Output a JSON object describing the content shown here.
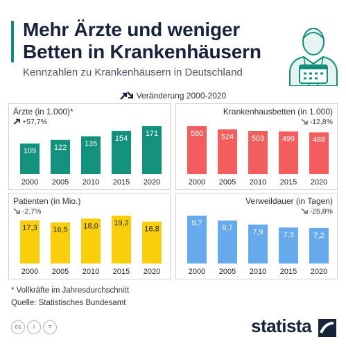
{
  "title": "Mehr Ärzte und weniger Betten in Krankenhäusern",
  "subtitle": "Kennzahlen zu Krankenhäusern in Deutschland",
  "legend_label": "Veränderung 2000-2020",
  "footnote": "* Vollkräfte im Jahresdurchschnitt",
  "source": "Quelle: Statistisches Bundesamt",
  "brand": "statista",
  "icons": {
    "doctor": "doctor-icon",
    "arrow": "trend-arrow-icon",
    "license": [
      "cc-icon",
      "by-icon",
      "nd-icon"
    ]
  },
  "chart_data": [
    {
      "type": "bar",
      "title": "Ärzte (in 1.000)*",
      "change": "+57,7%",
      "direction": "up",
      "categories": [
        "2000",
        "2005",
        "2010",
        "2015",
        "2020"
      ],
      "values": [
        109,
        122,
        135,
        154,
        171
      ],
      "labels": [
        "109",
        "122",
        "135",
        "154",
        "171"
      ],
      "color": "#12917c",
      "ylim": [
        0,
        171
      ]
    },
    {
      "type": "bar",
      "title": "Krankenhausbetten (in 1.000)",
      "change": "-12,8%",
      "direction": "down",
      "categories": [
        "2000",
        "2005",
        "2010",
        "2015",
        "2020"
      ],
      "values": [
        560,
        524,
        503,
        499,
        488
      ],
      "labels": [
        "560",
        "524",
        "503",
        "499",
        "488"
      ],
      "color": "#f35d5d",
      "ylim": [
        0,
        560
      ]
    },
    {
      "type": "bar",
      "title": "Patienten (in Mio.)",
      "change": "-2,7%",
      "direction": "down",
      "categories": [
        "2000",
        "2005",
        "2010",
        "2015",
        "2020"
      ],
      "values": [
        17.3,
        16.5,
        18.0,
        19.2,
        16.8
      ],
      "labels": [
        "17,3",
        "16,5",
        "18,0",
        "19,2",
        "16,8"
      ],
      "color": "#f9cf0b",
      "ylim": [
        0,
        19.2
      ]
    },
    {
      "type": "bar",
      "title": "Verweildauer (in Tagen)",
      "change": "-25,8%",
      "direction": "down",
      "categories": [
        "2000",
        "2005",
        "2010",
        "2015",
        "2020"
      ],
      "values": [
        9.7,
        8.7,
        7.9,
        7.3,
        7.2
      ],
      "labels": [
        "9,7",
        "8,7",
        "7,9",
        "7,3",
        "7,2"
      ],
      "color": "#66a9ec",
      "ylim": [
        0,
        9.7
      ]
    }
  ]
}
